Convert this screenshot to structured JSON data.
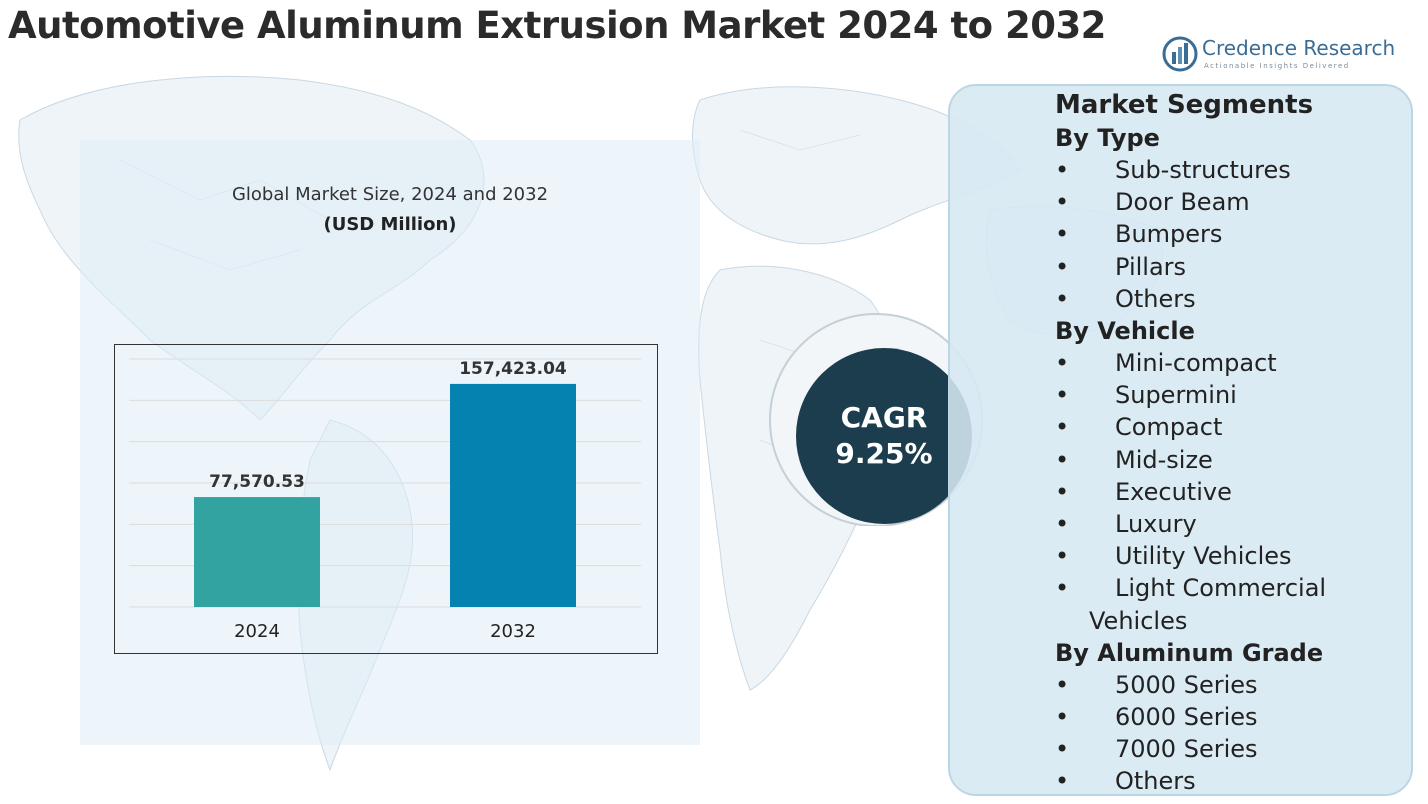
{
  "page": {
    "title": "Automotive Aluminum Extrusion Market 2024 to 2032"
  },
  "logo": {
    "name": "Credence Research",
    "tagline": "Actionable Insights Delivered",
    "icon": "bar-chart-logo-icon",
    "color": "#3a6d96"
  },
  "chart": {
    "subtitle": "Global Market Size, 2024 and 2032",
    "units": "(USD Million)"
  },
  "chart_data": {
    "type": "bar",
    "title": "Global Market Size, 2024 and 2032",
    "ylabel": "(USD Million)",
    "categories": [
      "2024",
      "2032"
    ],
    "values": [
      77570.53,
      157423.04
    ],
    "value_labels": [
      "77,570.53",
      "157,423.04"
    ],
    "colors": [
      "#33a3a1",
      "#0582b0"
    ],
    "ylim": [
      0,
      175000
    ],
    "grid": true,
    "legend": "none"
  },
  "cagr": {
    "label": "CAGR",
    "value": "9.25%",
    "color": "#1c3d4d"
  },
  "segments": {
    "heading": "Market Segments",
    "groups": [
      {
        "title": "By Type",
        "items": [
          "Sub-structures",
          "Door Beam",
          "Bumpers",
          "Pillars",
          "Others"
        ]
      },
      {
        "title": "By Vehicle",
        "items": [
          "Mini-compact",
          "Supermini",
          "Compact",
          "Mid-size",
          "Executive",
          "Luxury",
          "Utility Vehicles"
        ],
        "wrapped_item_first": "Light Commercial",
        "wrapped_item_second": "Vehicles"
      },
      {
        "title": "By Aluminum Grade",
        "items": [
          "5000 Series",
          "6000 Series",
          "7000 Series",
          "Others"
        ]
      }
    ]
  }
}
